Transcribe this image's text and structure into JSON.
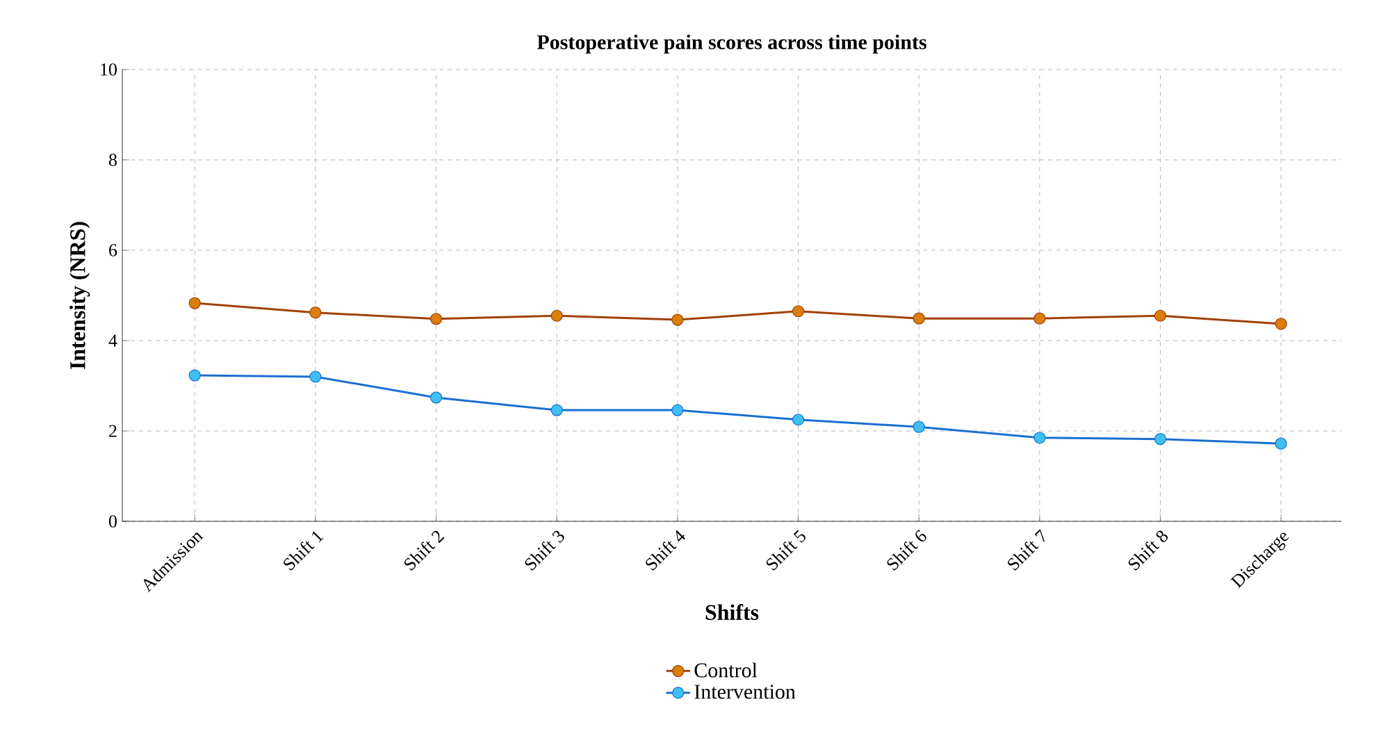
{
  "chart_data": {
    "type": "line",
    "title": "Postoperative pain scores across time points",
    "xlabel": "Shifts",
    "ylabel": "Intensity (NRS)",
    "categories": [
      "Admission",
      "Shift 1",
      "Shift 2",
      "Shift 3",
      "Shift 4",
      "Shift 5",
      "Shift 6",
      "Shift 7",
      "Shift 8",
      "Discharge"
    ],
    "series": [
      {
        "name": "Control",
        "color": "#d97f0a",
        "values": [
          4.83,
          4.62,
          4.48,
          4.55,
          4.46,
          4.65,
          4.49,
          4.49,
          4.55,
          4.37
        ]
      },
      {
        "name": "Intervention",
        "color": "#3fc0f0",
        "values": [
          3.23,
          3.2,
          2.74,
          2.46,
          2.46,
          2.25,
          2.09,
          1.85,
          1.82,
          1.72
        ]
      }
    ],
    "ylim": [
      0,
      10
    ],
    "yticks": [
      0,
      2,
      4,
      6,
      8,
      10
    ],
    "grid": true,
    "legend": "bottom",
    "marker": "circle",
    "line_style": "solid"
  }
}
